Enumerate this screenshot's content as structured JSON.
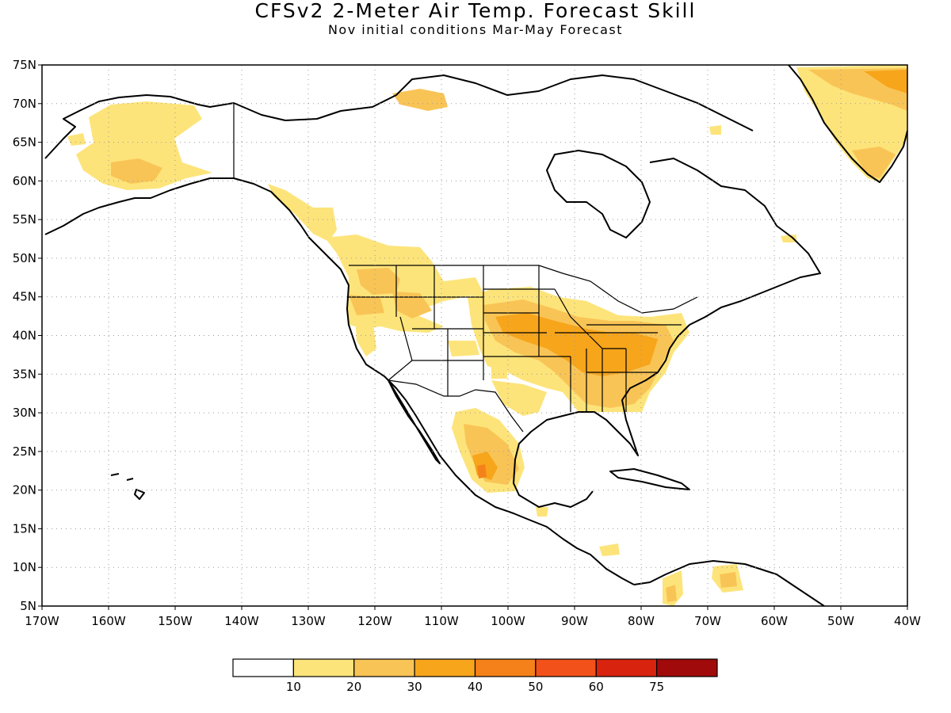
{
  "title": "CFSv2 2-Meter Air Temp. Forecast Skill",
  "subtitle": "Nov initial conditions  Mar-May Forecast",
  "map": {
    "lat_labels": [
      "75N",
      "70N",
      "65N",
      "60N",
      "55N",
      "50N",
      "45N",
      "40N",
      "35N",
      "30N",
      "25N",
      "20N",
      "15N",
      "10N",
      "5N"
    ],
    "lon_labels": [
      "170W",
      "160W",
      "150W",
      "140W",
      "130W",
      "120W",
      "110W",
      "100W",
      "90W",
      "80W",
      "70W",
      "60W",
      "50W",
      "40W"
    ],
    "lat_range": [
      5,
      75
    ],
    "lon_range": [
      -170,
      -40
    ],
    "grid": "dotted",
    "background": "#ffffff",
    "coastline_color": "#000000"
  },
  "colorbar": {
    "labels": [
      "10",
      "20",
      "30",
      "40",
      "50",
      "60",
      "75"
    ],
    "colors": [
      "#ffffff",
      "#fde47a",
      "#f9c456",
      "#f7a51b",
      "#f5811a",
      "#f2511a",
      "#d8230f",
      "#a00a0a"
    ]
  }
}
